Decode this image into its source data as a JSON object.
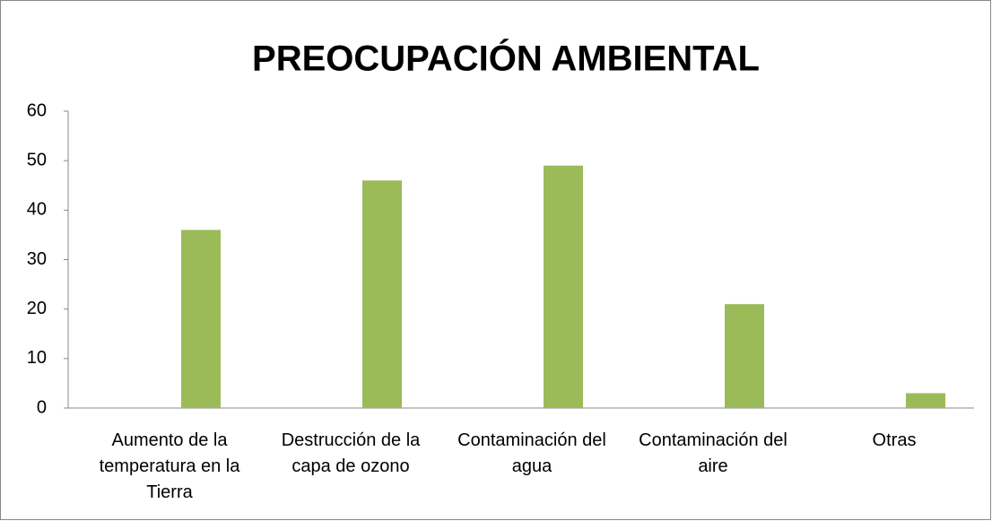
{
  "chart_data": {
    "type": "bar",
    "title": "PREOCUPACIÓN AMBIENTAL",
    "categories": [
      "Aumento de la temperatura en la Tierra",
      "Destrucción de la capa de ozono",
      "Contaminación del agua",
      "Contaminación del aire",
      "Otras"
    ],
    "values": [
      36,
      46,
      49,
      21,
      3
    ],
    "color": "#9bbb59",
    "ylim": [
      0,
      60
    ],
    "yticks": [
      0,
      10,
      20,
      30,
      40,
      50,
      60
    ],
    "grid": false
  }
}
